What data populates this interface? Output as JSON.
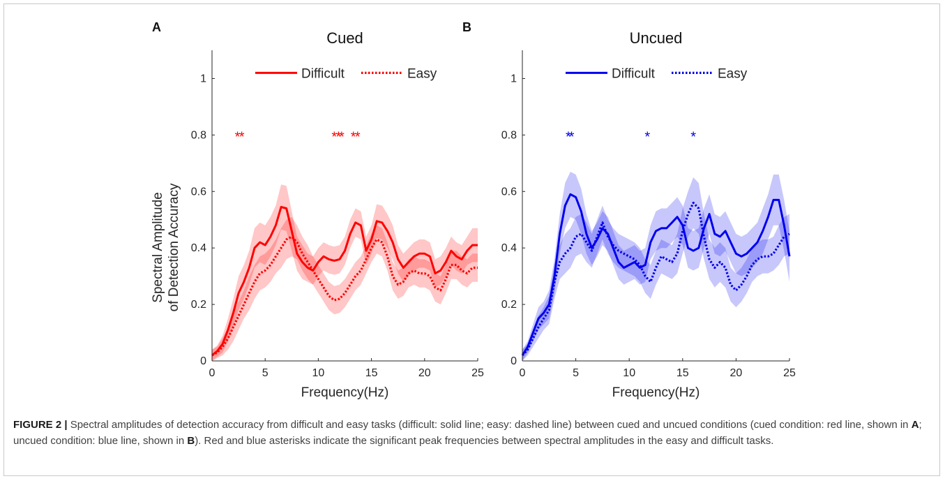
{
  "caption": {
    "label": "FIGURE 2 |",
    "s1": " Spectral amplitudes of detection accuracy from difficult and easy tasks (difficult: solid line; easy: dashed line) between cued and uncued conditions (cued condition: red line, shown in ",
    "ref_a": "A",
    "s2": "; uncued condition: blue line, shown in ",
    "ref_b": "B",
    "s3": "). Red and blue asterisks indicate the significant peak frequencies between spectral amplitudes in the easy and difficult tasks."
  },
  "colors": {
    "cued": "#ff0000",
    "uncued": "#0000ee"
  },
  "chart_data": [
    {
      "type": "line",
      "panel_label": "A",
      "title": "Cued",
      "xlabel": "Frequency(Hz)",
      "ylabel": [
        "Spectral Amplitude",
        "of Detection Accuracy"
      ],
      "xlim": [
        0,
        25
      ],
      "ylim": [
        0,
        1.1
      ],
      "xticks": [
        0,
        5,
        10,
        15,
        20,
        25
      ],
      "yticks": [
        0,
        0.2,
        0.4,
        0.6,
        0.8,
        1
      ],
      "legend_position": "top-center",
      "color": "#ff0000",
      "series": [
        {
          "name": "Difficult",
          "style": "solid",
          "x": [
            0,
            0.5,
            1,
            1.5,
            2,
            2.5,
            3,
            3.5,
            4,
            4.5,
            5,
            5.5,
            6,
            6.5,
            7,
            7.5,
            8,
            8.5,
            9,
            9.5,
            10,
            10.5,
            11,
            11.5,
            12,
            12.5,
            13,
            13.5,
            14,
            14.5,
            15,
            15.5,
            16,
            16.5,
            17,
            17.5,
            18,
            18.5,
            19,
            19.5,
            20,
            20.5,
            21,
            21.5,
            22,
            22.5,
            23,
            23.5,
            24,
            24.5,
            25
          ],
          "y": [
            0.02,
            0.035,
            0.06,
            0.11,
            0.17,
            0.24,
            0.28,
            0.33,
            0.4,
            0.42,
            0.41,
            0.44,
            0.48,
            0.545,
            0.54,
            0.46,
            0.38,
            0.35,
            0.33,
            0.32,
            0.35,
            0.37,
            0.36,
            0.355,
            0.36,
            0.39,
            0.45,
            0.49,
            0.48,
            0.39,
            0.43,
            0.495,
            0.49,
            0.46,
            0.42,
            0.36,
            0.33,
            0.35,
            0.37,
            0.38,
            0.38,
            0.37,
            0.31,
            0.32,
            0.35,
            0.39,
            0.37,
            0.36,
            0.39,
            0.41,
            0.41
          ],
          "band": [
            0.02,
            0.02,
            0.03,
            0.04,
            0.05,
            0.06,
            0.06,
            0.06,
            0.07,
            0.07,
            0.07,
            0.07,
            0.07,
            0.08,
            0.08,
            0.07,
            0.06,
            0.06,
            0.05,
            0.05,
            0.05,
            0.05,
            0.05,
            0.05,
            0.05,
            0.05,
            0.05,
            0.05,
            0.05,
            0.05,
            0.05,
            0.06,
            0.06,
            0.06,
            0.06,
            0.05,
            0.05,
            0.05,
            0.05,
            0.05,
            0.05,
            0.05,
            0.05,
            0.05,
            0.05,
            0.05,
            0.05,
            0.05,
            0.05,
            0.06,
            0.06
          ]
        },
        {
          "name": "Easy",
          "style": "dashed",
          "x": [
            0,
            0.5,
            1,
            1.5,
            2,
            2.5,
            3,
            3.5,
            4,
            4.5,
            5,
            5.5,
            6,
            6.5,
            7,
            7.5,
            8,
            8.5,
            9,
            9.5,
            10,
            10.5,
            11,
            11.5,
            12,
            12.5,
            13,
            13.5,
            14,
            14.5,
            15,
            15.5,
            16,
            16.5,
            17,
            17.5,
            18,
            18.5,
            19,
            19.5,
            20,
            20.5,
            21,
            21.5,
            22,
            22.5,
            23,
            23.5,
            24,
            24.5,
            25
          ],
          "y": [
            0.02,
            0.03,
            0.05,
            0.08,
            0.12,
            0.16,
            0.2,
            0.24,
            0.28,
            0.31,
            0.32,
            0.34,
            0.37,
            0.4,
            0.43,
            0.44,
            0.42,
            0.38,
            0.35,
            0.32,
            0.29,
            0.26,
            0.23,
            0.215,
            0.22,
            0.24,
            0.27,
            0.3,
            0.32,
            0.36,
            0.4,
            0.43,
            0.42,
            0.37,
            0.3,
            0.27,
            0.28,
            0.31,
            0.32,
            0.31,
            0.31,
            0.3,
            0.26,
            0.25,
            0.29,
            0.34,
            0.34,
            0.32,
            0.31,
            0.33,
            0.33
          ],
          "band": [
            0.02,
            0.02,
            0.03,
            0.04,
            0.05,
            0.05,
            0.05,
            0.06,
            0.06,
            0.06,
            0.06,
            0.06,
            0.06,
            0.07,
            0.07,
            0.07,
            0.06,
            0.06,
            0.06,
            0.05,
            0.05,
            0.05,
            0.05,
            0.05,
            0.05,
            0.05,
            0.05,
            0.05,
            0.05,
            0.05,
            0.05,
            0.05,
            0.05,
            0.05,
            0.05,
            0.05,
            0.05,
            0.05,
            0.05,
            0.05,
            0.05,
            0.05,
            0.05,
            0.05,
            0.05,
            0.05,
            0.05,
            0.05,
            0.05,
            0.05,
            0.05
          ]
        }
      ],
      "significant_peaks": {
        "y": 0.8,
        "x": [
          2.4,
          2.8,
          11.5,
          11.9,
          12.2,
          13.3,
          13.7
        ]
      }
    },
    {
      "type": "line",
      "panel_label": "B",
      "title": "Uncued",
      "xlabel": "Frequency(Hz)",
      "ylabel": [],
      "xlim": [
        0,
        25
      ],
      "ylim": [
        0,
        1.1
      ],
      "xticks": [
        0,
        5,
        10,
        15,
        20,
        25
      ],
      "yticks": [
        0,
        0.2,
        0.4,
        0.6,
        0.8,
        1
      ],
      "legend_position": "top-center",
      "color": "#0000ee",
      "series": [
        {
          "name": "Difficult",
          "style": "solid",
          "x": [
            0,
            0.5,
            1,
            1.5,
            2,
            2.5,
            3,
            3.5,
            4,
            4.5,
            5,
            5.5,
            6,
            6.5,
            7,
            7.5,
            8,
            8.5,
            9,
            9.5,
            10,
            10.5,
            11,
            11.5,
            12,
            12.5,
            13,
            13.5,
            14,
            14.5,
            15,
            15.5,
            16,
            16.5,
            17,
            17.5,
            18,
            18.5,
            19,
            19.5,
            20,
            20.5,
            21,
            21.5,
            22,
            22.5,
            23,
            23.5,
            24,
            24.5,
            25
          ],
          "y": [
            0.02,
            0.05,
            0.1,
            0.15,
            0.17,
            0.2,
            0.3,
            0.45,
            0.55,
            0.59,
            0.58,
            0.53,
            0.45,
            0.4,
            0.43,
            0.47,
            0.45,
            0.4,
            0.35,
            0.33,
            0.34,
            0.35,
            0.33,
            0.34,
            0.42,
            0.46,
            0.47,
            0.47,
            0.49,
            0.51,
            0.48,
            0.4,
            0.39,
            0.4,
            0.47,
            0.52,
            0.45,
            0.44,
            0.46,
            0.42,
            0.38,
            0.37,
            0.38,
            0.4,
            0.42,
            0.46,
            0.51,
            0.57,
            0.57,
            0.48,
            0.37
          ],
          "band": [
            0.02,
            0.02,
            0.03,
            0.04,
            0.04,
            0.05,
            0.06,
            0.07,
            0.08,
            0.08,
            0.08,
            0.08,
            0.07,
            0.06,
            0.06,
            0.06,
            0.06,
            0.06,
            0.06,
            0.06,
            0.06,
            0.06,
            0.06,
            0.06,
            0.06,
            0.07,
            0.07,
            0.07,
            0.07,
            0.07,
            0.07,
            0.07,
            0.07,
            0.07,
            0.07,
            0.07,
            0.07,
            0.07,
            0.07,
            0.07,
            0.07,
            0.07,
            0.07,
            0.07,
            0.07,
            0.08,
            0.08,
            0.09,
            0.09,
            0.09,
            0.09
          ]
        },
        {
          "name": "Easy",
          "style": "dashed",
          "x": [
            0,
            0.5,
            1,
            1.5,
            2,
            2.5,
            3,
            3.5,
            4,
            4.5,
            5,
            5.5,
            6,
            6.5,
            7,
            7.5,
            8,
            8.5,
            9,
            9.5,
            10,
            10.5,
            11,
            11.5,
            12,
            12.5,
            13,
            13.5,
            14,
            14.5,
            15,
            15.5,
            16,
            16.5,
            17,
            17.5,
            18,
            18.5,
            19,
            19.5,
            20,
            20.5,
            21,
            21.5,
            22,
            22.5,
            23,
            23.5,
            24,
            24.5,
            25
          ],
          "y": [
            0.02,
            0.04,
            0.08,
            0.12,
            0.15,
            0.18,
            0.28,
            0.35,
            0.38,
            0.4,
            0.44,
            0.45,
            0.42,
            0.39,
            0.44,
            0.49,
            0.44,
            0.41,
            0.39,
            0.38,
            0.37,
            0.36,
            0.34,
            0.3,
            0.28,
            0.33,
            0.37,
            0.36,
            0.35,
            0.38,
            0.46,
            0.52,
            0.56,
            0.54,
            0.44,
            0.36,
            0.33,
            0.35,
            0.33,
            0.27,
            0.25,
            0.27,
            0.3,
            0.34,
            0.36,
            0.37,
            0.37,
            0.38,
            0.41,
            0.44,
            0.45
          ],
          "band": [
            0.02,
            0.02,
            0.03,
            0.04,
            0.04,
            0.05,
            0.06,
            0.06,
            0.07,
            0.07,
            0.07,
            0.07,
            0.07,
            0.06,
            0.06,
            0.06,
            0.06,
            0.06,
            0.06,
            0.06,
            0.06,
            0.06,
            0.06,
            0.06,
            0.06,
            0.06,
            0.06,
            0.06,
            0.06,
            0.07,
            0.08,
            0.08,
            0.09,
            0.09,
            0.08,
            0.07,
            0.07,
            0.07,
            0.07,
            0.06,
            0.06,
            0.06,
            0.06,
            0.06,
            0.06,
            0.06,
            0.06,
            0.06,
            0.07,
            0.07,
            0.07
          ]
        }
      ],
      "significant_peaks": {
        "y": 0.8,
        "x": [
          4.3,
          4.6,
          11.7,
          16.0
        ]
      }
    }
  ]
}
